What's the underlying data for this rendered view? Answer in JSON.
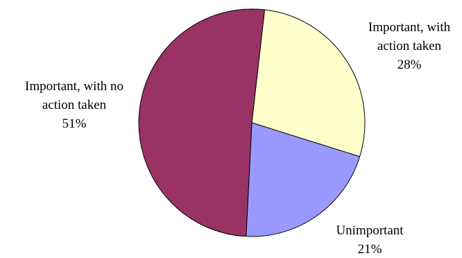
{
  "chart_data": {
    "type": "pie",
    "title": "",
    "start_angle_deg": 6.5,
    "direction": "clockwise",
    "slices": [
      {
        "label_lines": [
          "Important, with",
          "action taken"
        ],
        "percent_label": "28%",
        "value": 28,
        "color": "#FFFFCC"
      },
      {
        "label_lines": [
          "Unimportant"
        ],
        "percent_label": "21%",
        "value": 21,
        "color": "#9999FF"
      },
      {
        "label_lines": [
          "Important, with no",
          "action taken"
        ],
        "percent_label": "51%",
        "value": 51,
        "color": "#993366"
      }
    ]
  }
}
